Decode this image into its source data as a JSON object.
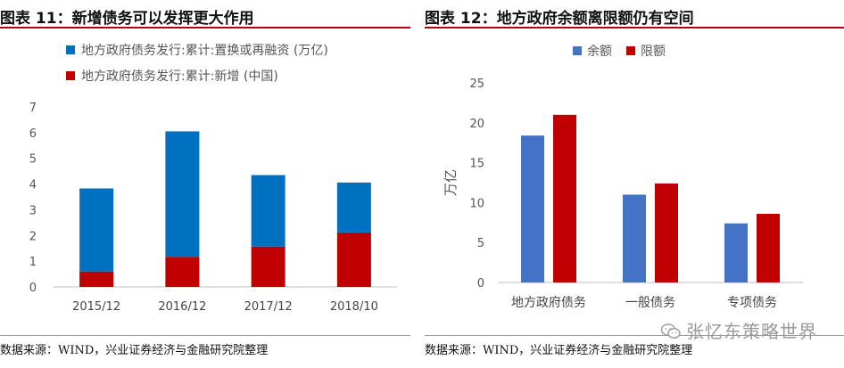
{
  "chart_data": [
    {
      "type": "bar",
      "stacked": true,
      "title": "图表 11：新增债务可以发挥更大作用",
      "categories": [
        "2015/12",
        "2016/12",
        "2017/12",
        "2018/10"
      ],
      "series": [
        {
          "name": "地方政府债务发行:累计:新增 (中国)",
          "color": "#c00000",
          "values": [
            0.6,
            1.17,
            1.57,
            2.12
          ]
        },
        {
          "name": "地方政府债务发行:累计:置换或再融资 (万亿)",
          "color": "#0070c0",
          "values": [
            3.23,
            4.88,
            2.78,
            1.94
          ]
        }
      ],
      "legend_order": [
        1,
        0
      ],
      "ylim": [
        0,
        7
      ],
      "yticks": [
        "0",
        "1",
        "2",
        "3",
        "4",
        "5",
        "6",
        "7"
      ],
      "ylabel": "",
      "xlabel": "",
      "source": "数据来源：WIND，兴业证券经济与金融研究院整理"
    },
    {
      "type": "bar",
      "stacked": false,
      "title": "图表 12：地方政府余额离限额仍有空间",
      "categories": [
        "地方政府债务",
        "一般债务",
        "专项债务"
      ],
      "series": [
        {
          "name": "余额",
          "color": "#4472c4",
          "values": [
            18.4,
            11.0,
            7.4
          ]
        },
        {
          "name": "限额",
          "color": "#c00000",
          "values": [
            21.0,
            12.4,
            8.6
          ]
        }
      ],
      "ylim": [
        0,
        25
      ],
      "yticks": [
        "0",
        "5",
        "10",
        "15",
        "20",
        "25"
      ],
      "ylabel": "万亿",
      "xlabel": "",
      "source": "数据来源：WIND，兴业证券经济与金融研究院整理"
    }
  ],
  "watermark": "张忆东策略世界"
}
